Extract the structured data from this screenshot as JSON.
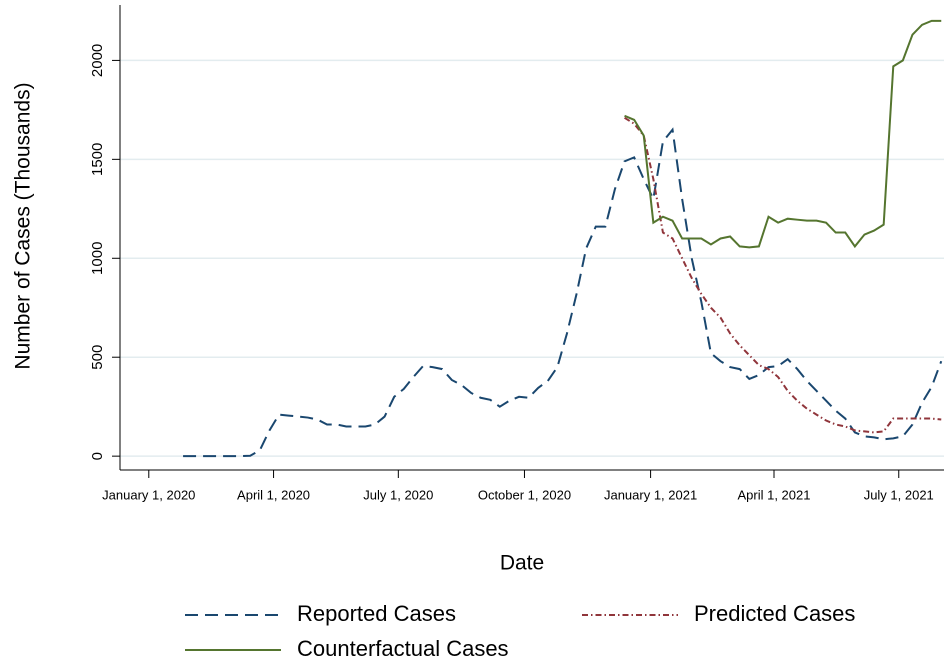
{
  "chart_data": {
    "type": "line",
    "xlabel": "Date",
    "ylabel": "Number of Cases (Thousands)",
    "x": [
      "2020-01-26",
      "2020-02-02",
      "2020-02-09",
      "2020-02-16",
      "2020-02-23",
      "2020-03-01",
      "2020-03-08",
      "2020-03-15",
      "2020-03-22",
      "2020-03-29",
      "2020-04-05",
      "2020-04-12",
      "2020-04-19",
      "2020-04-26",
      "2020-05-03",
      "2020-05-10",
      "2020-05-17",
      "2020-05-24",
      "2020-05-31",
      "2020-06-07",
      "2020-06-14",
      "2020-06-21",
      "2020-06-28",
      "2020-07-05",
      "2020-07-12",
      "2020-07-19",
      "2020-07-26",
      "2020-08-02",
      "2020-08-09",
      "2020-08-16",
      "2020-08-23",
      "2020-08-30",
      "2020-09-06",
      "2020-09-13",
      "2020-09-20",
      "2020-09-27",
      "2020-10-04",
      "2020-10-11",
      "2020-10-18",
      "2020-10-25",
      "2020-11-01",
      "2020-11-08",
      "2020-11-15",
      "2020-11-22",
      "2020-11-29",
      "2020-12-06",
      "2020-12-13",
      "2020-12-20",
      "2020-12-27",
      "2021-01-03",
      "2021-01-10",
      "2021-01-17",
      "2021-01-24",
      "2021-01-31",
      "2021-02-07",
      "2021-02-14",
      "2021-02-21",
      "2021-02-28",
      "2021-03-07",
      "2021-03-14",
      "2021-03-21",
      "2021-03-28",
      "2021-04-04",
      "2021-04-11",
      "2021-04-18",
      "2021-04-25",
      "2021-05-02",
      "2021-05-09",
      "2021-05-16",
      "2021-05-23",
      "2021-05-30",
      "2021-06-06",
      "2021-06-13",
      "2021-06-20",
      "2021-06-27",
      "2021-07-04",
      "2021-07-11",
      "2021-07-18",
      "2021-07-25",
      "2021-08-01"
    ],
    "series": [
      {
        "name": "Reported Cases",
        "color": "#1a476f",
        "style": "dashed",
        "values": [
          0,
          0,
          0,
          0,
          0,
          0,
          0,
          2,
          30,
          130,
          210,
          205,
          200,
          195,
          185,
          160,
          160,
          150,
          150,
          150,
          160,
          200,
          300,
          340,
          400,
          455,
          450,
          440,
          385,
          360,
          320,
          295,
          285,
          250,
          280,
          300,
          295,
          345,
          380,
          450,
          620,
          820,
          1050,
          1160,
          1160,
          1350,
          1490,
          1510,
          1400,
          1300,
          1590,
          1650,
          1300,
          1000,
          780,
          520,
          480,
          450,
          440,
          390,
          410,
          450,
          455,
          490,
          440,
          380,
          330,
          280,
          230,
          190,
          120,
          100,
          95,
          85,
          90,
          100,
          160,
          270,
          350,
          480
        ]
      },
      {
        "name": "Predicted Cases",
        "color": "#90353b",
        "style": "dashdot",
        "values": [
          null,
          null,
          null,
          null,
          null,
          null,
          null,
          null,
          null,
          null,
          null,
          null,
          null,
          null,
          null,
          null,
          null,
          null,
          null,
          null,
          null,
          null,
          null,
          null,
          null,
          null,
          null,
          null,
          null,
          null,
          null,
          null,
          null,
          null,
          null,
          null,
          null,
          null,
          null,
          null,
          null,
          null,
          null,
          null,
          null,
          null,
          1710,
          1680,
          1620,
          1400,
          1130,
          1100,
          1000,
          900,
          820,
          750,
          700,
          620,
          560,
          510,
          460,
          440,
          400,
          330,
          280,
          240,
          210,
          180,
          160,
          150,
          130,
          125,
          120,
          125,
          190,
          190,
          190,
          190,
          190,
          185
        ]
      },
      {
        "name": "Counterfactual Cases",
        "color": "#55752f",
        "style": "solid",
        "values": [
          null,
          null,
          null,
          null,
          null,
          null,
          null,
          null,
          null,
          null,
          null,
          null,
          null,
          null,
          null,
          null,
          null,
          null,
          null,
          null,
          null,
          null,
          null,
          null,
          null,
          null,
          null,
          null,
          null,
          null,
          null,
          null,
          null,
          null,
          null,
          null,
          null,
          null,
          null,
          null,
          null,
          null,
          null,
          null,
          null,
          null,
          1720,
          1700,
          1620,
          1180,
          1210,
          1190,
          1100,
          1100,
          1100,
          1070,
          1100,
          1110,
          1060,
          1055,
          1060,
          1210,
          1180,
          1200,
          1195,
          1190,
          1190,
          1180,
          1130,
          1130,
          1060,
          1120,
          1140,
          1170,
          1970,
          2000,
          2130,
          2180,
          2200,
          2200
        ]
      }
    ],
    "xlim": [
      "2019-12-11",
      "2021-08-03"
    ],
    "xticks": [
      {
        "value": "2020-01-01",
        "label": "January 1, 2020"
      },
      {
        "value": "2020-04-01",
        "label": "April 1, 2020"
      },
      {
        "value": "2020-07-01",
        "label": "July 1, 2020"
      },
      {
        "value": "2020-10-01",
        "label": "October 1, 2020"
      },
      {
        "value": "2021-01-01",
        "label": "January 1, 2021"
      },
      {
        "value": "2021-04-01",
        "label": "April 1, 2021"
      },
      {
        "value": "2021-07-01",
        "label": "July 1, 2021"
      }
    ],
    "ylim": [
      -70,
      2280
    ],
    "yticks": [
      0,
      500,
      1000,
      1500,
      2000
    ],
    "grid": true
  }
}
